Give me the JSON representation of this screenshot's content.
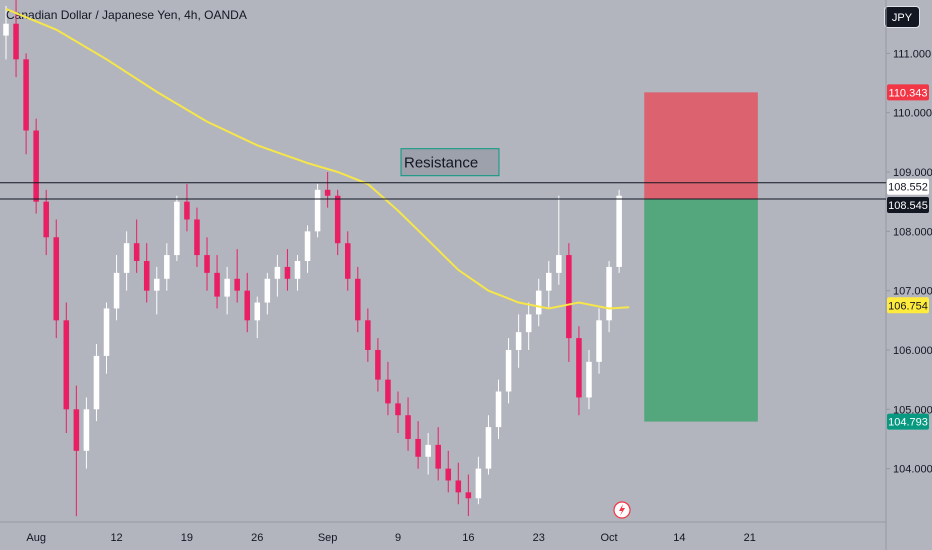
{
  "header": {
    "title": "Canadian Dollar / Japanese Yen, 4h, OANDA",
    "currency": "JPY"
  },
  "chart_data": {
    "type": "candlestick",
    "y_range": [
      103.1,
      111.9
    ],
    "y_ticks": [
      {
        "value": 104,
        "label": "104.000"
      },
      {
        "value": 105,
        "label": "105.000"
      },
      {
        "value": 106,
        "label": "106.000"
      },
      {
        "value": 107,
        "label": "107.000"
      },
      {
        "value": 108,
        "label": "108.000"
      },
      {
        "value": 109,
        "label": "109.000"
      },
      {
        "value": 110,
        "label": "110.000"
      },
      {
        "value": 111,
        "label": "111.000"
      }
    ],
    "x_ticks": [
      {
        "slot": 3,
        "label": "Aug"
      },
      {
        "slot": 11,
        "label": "12"
      },
      {
        "slot": 18,
        "label": "19"
      },
      {
        "slot": 25,
        "label": "26"
      },
      {
        "slot": 32,
        "label": "Sep"
      },
      {
        "slot": 39,
        "label": "9"
      },
      {
        "slot": 46,
        "label": "16"
      },
      {
        "slot": 53,
        "label": "23"
      },
      {
        "slot": 60,
        "label": "Oct"
      },
      {
        "slot": 67,
        "label": "14"
      },
      {
        "slot": 74,
        "label": "21"
      }
    ],
    "slot_count": 79,
    "candles": [
      [
        111.3,
        111.8,
        110.9,
        111.5
      ],
      [
        111.5,
        111.9,
        110.6,
        110.9
      ],
      [
        110.9,
        111.0,
        109.3,
        109.7
      ],
      [
        109.7,
        109.9,
        108.3,
        108.5
      ],
      [
        108.5,
        108.7,
        107.6,
        107.9
      ],
      [
        107.9,
        108.2,
        106.2,
        106.5
      ],
      [
        106.5,
        106.8,
        104.6,
        105.0
      ],
      [
        105.0,
        105.4,
        103.2,
        104.3
      ],
      [
        104.3,
        105.2,
        104.0,
        105.0
      ],
      [
        105.0,
        106.1,
        104.8,
        105.9
      ],
      [
        105.9,
        106.8,
        105.6,
        106.7
      ],
      [
        106.7,
        107.6,
        106.5,
        107.3
      ],
      [
        107.3,
        108.0,
        107.0,
        107.8
      ],
      [
        107.8,
        108.2,
        107.3,
        107.5
      ],
      [
        107.5,
        107.8,
        106.8,
        107.0
      ],
      [
        107.0,
        107.4,
        106.6,
        107.2
      ],
      [
        107.2,
        107.8,
        107.0,
        107.6
      ],
      [
        107.6,
        108.6,
        107.5,
        108.5
      ],
      [
        108.5,
        108.8,
        108.0,
        108.2
      ],
      [
        108.2,
        108.4,
        107.4,
        107.6
      ],
      [
        107.6,
        107.9,
        107.0,
        107.3
      ],
      [
        107.3,
        107.6,
        106.7,
        106.9
      ],
      [
        106.9,
        107.4,
        106.6,
        107.2
      ],
      [
        107.2,
        107.7,
        106.8,
        107.0
      ],
      [
        107.0,
        107.3,
        106.3,
        106.5
      ],
      [
        106.5,
        106.9,
        106.2,
        106.8
      ],
      [
        106.8,
        107.3,
        106.6,
        107.2
      ],
      [
        107.2,
        107.6,
        106.9,
        107.4
      ],
      [
        107.4,
        107.7,
        107.0,
        107.2
      ],
      [
        107.2,
        107.6,
        107.0,
        107.5
      ],
      [
        107.5,
        108.1,
        107.3,
        108.0
      ],
      [
        108.0,
        108.8,
        107.9,
        108.7
      ],
      [
        108.7,
        109.0,
        108.4,
        108.6
      ],
      [
        108.6,
        108.7,
        107.6,
        107.8
      ],
      [
        107.8,
        108.0,
        107.0,
        107.2
      ],
      [
        107.2,
        107.4,
        106.3,
        106.5
      ],
      [
        106.5,
        106.7,
        105.8,
        106.0
      ],
      [
        106.0,
        106.2,
        105.3,
        105.5
      ],
      [
        105.5,
        105.8,
        104.9,
        105.1
      ],
      [
        105.1,
        105.3,
        104.6,
        104.9
      ],
      [
        104.9,
        105.2,
        104.3,
        104.5
      ],
      [
        104.5,
        104.8,
        104.0,
        104.2
      ],
      [
        104.2,
        104.6,
        103.9,
        104.4
      ],
      [
        104.4,
        104.7,
        103.8,
        104.0
      ],
      [
        104.0,
        104.3,
        103.6,
        103.8
      ],
      [
        103.8,
        104.1,
        103.4,
        103.6
      ],
      [
        103.6,
        103.9,
        103.2,
        103.5
      ],
      [
        103.5,
        104.2,
        103.4,
        104.0
      ],
      [
        104.0,
        104.9,
        103.9,
        104.7
      ],
      [
        104.7,
        105.5,
        104.5,
        105.3
      ],
      [
        105.3,
        106.2,
        105.1,
        106.0
      ],
      [
        106.0,
        106.6,
        105.7,
        106.3
      ],
      [
        106.3,
        106.8,
        106.0,
        106.6
      ],
      [
        106.6,
        107.2,
        106.4,
        107.0
      ],
      [
        107.0,
        107.5,
        106.7,
        107.3
      ],
      [
        107.3,
        108.6,
        107.1,
        107.6
      ],
      [
        107.6,
        107.8,
        105.8,
        106.2
      ],
      [
        106.2,
        106.4,
        104.9,
        105.2
      ],
      [
        105.2,
        106.0,
        105.0,
        105.8
      ],
      [
        105.8,
        106.7,
        105.6,
        106.5
      ],
      [
        106.5,
        107.5,
        106.3,
        107.4
      ],
      [
        107.4,
        108.7,
        107.3,
        108.6
      ]
    ],
    "ma_points": [
      [
        0,
        111.75
      ],
      [
        5,
        111.4
      ],
      [
        10,
        110.9
      ],
      [
        15,
        110.35
      ],
      [
        20,
        109.85
      ],
      [
        25,
        109.45
      ],
      [
        30,
        109.15
      ],
      [
        33,
        109.0
      ],
      [
        36,
        108.8
      ],
      [
        39,
        108.35
      ],
      [
        42,
        107.85
      ],
      [
        45,
        107.35
      ],
      [
        48,
        107.0
      ],
      [
        51,
        106.8
      ],
      [
        54,
        106.7
      ],
      [
        57,
        106.8
      ],
      [
        60,
        106.7
      ],
      [
        62,
        106.72
      ]
    ],
    "ma_color": "#f6e64a",
    "resistance_band": [
      108.545,
      108.82
    ],
    "resistance_label": "Resistance",
    "position": {
      "entry": 108.545,
      "stop": 110.343,
      "target": 104.793,
      "start_slot": 63.5,
      "end_slot": 74.8
    },
    "price_tags": [
      {
        "label": "110.343",
        "value": 110.343,
        "bg": "#f23645",
        "fg": "#ffffff"
      },
      {
        "label": "108.552",
        "value": 108.752,
        "bg": "#ffffff",
        "fg": "#131722"
      },
      {
        "label": "108.545",
        "value": 108.445,
        "bg": "#131722",
        "fg": "#ffffff"
      },
      {
        "label": "106.754",
        "value": 106.754,
        "bg": "#ffeb3b",
        "fg": "#131722"
      },
      {
        "label": "104.793",
        "value": 104.793,
        "bg": "#089981",
        "fg": "#ffffff"
      }
    ],
    "up_color": "#ffffff",
    "down_color": "#e91e63"
  }
}
